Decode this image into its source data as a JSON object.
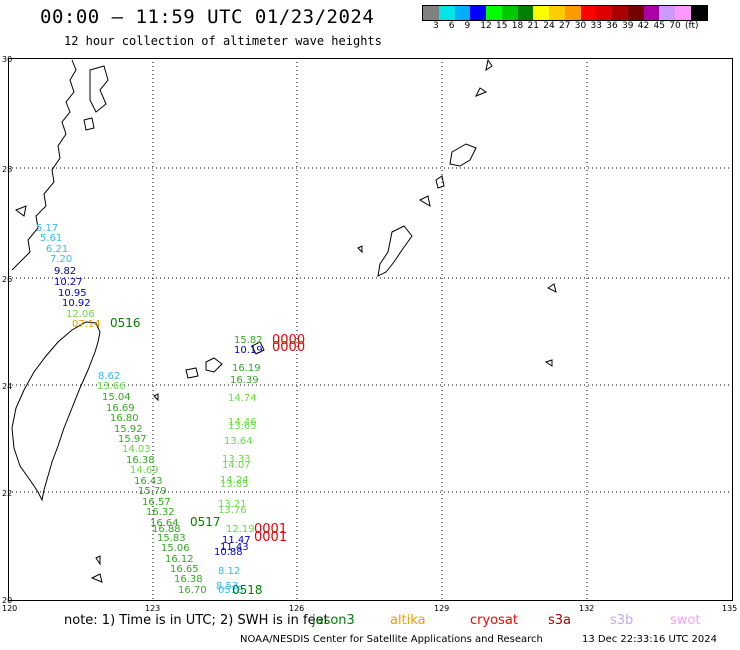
{
  "header": {
    "title": "00:00 — 11:59 UTC 01/23/2024",
    "subtitle": "12 hour collection of altimeter wave heights"
  },
  "colorbar": {
    "colors": [
      "#808080",
      "#00e5e5",
      "#00b0ff",
      "#0000ff",
      "#00ff00",
      "#00c800",
      "#008000",
      "#ffff00",
      "#ffcc00",
      "#ff9900",
      "#ff0000",
      "#dd0000",
      "#aa0000",
      "#770000",
      "#aa00aa",
      "#cc99ff",
      "#ff99ff",
      "#000000"
    ],
    "labels": [
      "3",
      "6",
      "9",
      "12",
      "15",
      "18",
      "21",
      "24",
      "27",
      "30",
      "33",
      "36",
      "39",
      "42",
      "45",
      "70",
      "(ft)"
    ]
  },
  "axes": {
    "x_ticks": [
      "120",
      "123",
      "126",
      "129",
      "132",
      "135"
    ],
    "y_ticks": [
      "30",
      "28",
      "26",
      "24",
      "22",
      "20"
    ]
  },
  "tracks": [
    {
      "satellite": "sentinel-track-1",
      "color_hint": "mixed",
      "points": [
        {
          "v": "5.17",
          "c": "#33bbee"
        },
        {
          "v": "5.61",
          "c": "#33bbee"
        },
        {
          "v": "6.21",
          "c": "#33bbee"
        },
        {
          "v": "7.20",
          "c": "#33bbee"
        },
        {
          "v": "9.82",
          "c": "#00008b"
        },
        {
          "v": "10.27",
          "c": "#0000cd"
        },
        {
          "v": "10.95",
          "c": "#0000cd"
        },
        {
          "v": "10.92",
          "c": "#0000cd"
        },
        {
          "v": "12.06",
          "c": "#66dd44"
        },
        {
          "v": "07.14",
          "c": "#ee9900"
        }
      ]
    },
    {
      "satellite": "track-2",
      "points": [
        {
          "v": "8.62",
          "c": "#33bbee"
        },
        {
          "v": "13.66",
          "c": "#66dd44"
        },
        {
          "v": "15.04",
          "c": "#33aa22"
        },
        {
          "v": "16.69",
          "c": "#33aa22"
        },
        {
          "v": "16.80",
          "c": "#33aa22"
        },
        {
          "v": "15.92",
          "c": "#33aa22"
        },
        {
          "v": "15.97",
          "c": "#33aa22"
        },
        {
          "v": "14.03",
          "c": "#66dd44"
        },
        {
          "v": "16.38",
          "c": "#33aa22"
        },
        {
          "v": "14.69",
          "c": "#66dd44"
        },
        {
          "v": "16.43",
          "c": "#33aa22"
        },
        {
          "v": "15.79",
          "c": "#33aa22"
        },
        {
          "v": "16.57",
          "c": "#33aa22"
        },
        {
          "v": "16.32",
          "c": "#33aa22"
        },
        {
          "v": "16.64",
          "c": "#33aa22"
        },
        {
          "v": "16.88",
          "c": "#33aa22"
        },
        {
          "v": "15.83",
          "c": "#33aa22"
        },
        {
          "v": "15.06",
          "c": "#33aa22"
        },
        {
          "v": "16.12",
          "c": "#33aa22"
        },
        {
          "v": "16.65",
          "c": "#33aa22"
        },
        {
          "v": "16.38",
          "c": "#33aa22"
        },
        {
          "v": "16.70",
          "c": "#33aa22"
        }
      ]
    },
    {
      "satellite": "track-3",
      "points": [
        {
          "v": "15.82",
          "c": "#33aa22"
        },
        {
          "v": "10.19",
          "c": "#0000cd"
        },
        {
          "v": "16.19",
          "c": "#33aa22"
        },
        {
          "v": "16.39",
          "c": "#33aa22"
        },
        {
          "v": "14.74",
          "c": "#66dd44"
        },
        {
          "v": "14.46",
          "c": "#66dd44"
        },
        {
          "v": "13.65",
          "c": "#66dd44"
        },
        {
          "v": "13.64",
          "c": "#66dd44"
        },
        {
          "v": "13.33",
          "c": "#66dd44"
        },
        {
          "v": "14.07",
          "c": "#66dd44"
        },
        {
          "v": "14.24",
          "c": "#66dd44"
        },
        {
          "v": "13.85",
          "c": "#66dd44"
        },
        {
          "v": "13.21",
          "c": "#66dd44"
        },
        {
          "v": "13.76",
          "c": "#66dd44"
        },
        {
          "v": "12.19",
          "c": "#66dd44"
        },
        {
          "v": "11.47",
          "c": "#0000cd"
        },
        {
          "v": "11.43",
          "c": "#0000cd"
        },
        {
          "v": "10.88",
          "c": "#0000cd"
        },
        {
          "v": "8.12",
          "c": "#33bbee"
        },
        {
          "v": "8.53",
          "c": "#33bbee"
        },
        {
          "v": "0518",
          "c": "#33bbee"
        }
      ]
    }
  ],
  "time_labels": [
    "0516",
    "0517",
    "0518"
  ],
  "red_labels": [
    "0000",
    "0000",
    "0001",
    "0001"
  ],
  "footer": {
    "note": "note: 1) Time is in UTC; 2) SWH is in feet",
    "satellites": [
      {
        "name": "jason3",
        "color": "#008000"
      },
      {
        "name": "altika",
        "color": "#ff9900"
      },
      {
        "name": "cryosat",
        "color": "#ff0000"
      },
      {
        "name": "s3a",
        "color": "#aa0000"
      },
      {
        "name": "s3b",
        "color": "#bbaaee"
      },
      {
        "name": "swot",
        "color": "#ff99ff"
      }
    ],
    "credit": "NOAA/NESDIS Center for Satellite Applications and Research",
    "stamp": "13 Dec 22:33:16 UTC 2024"
  }
}
